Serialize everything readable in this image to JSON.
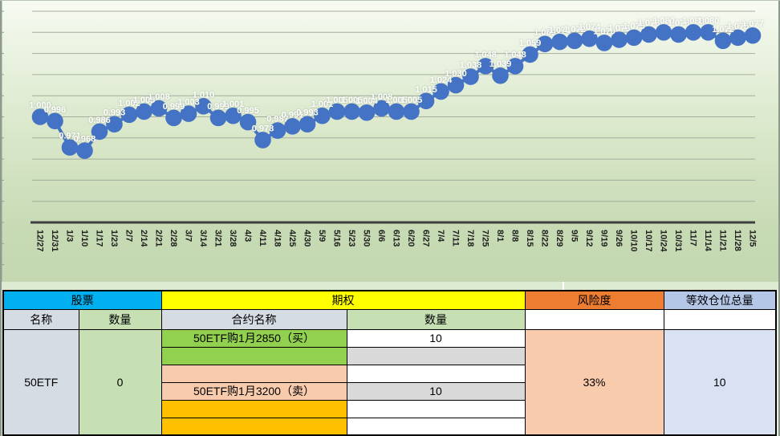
{
  "chart_data": {
    "type": "line",
    "title": "",
    "xlabel": "",
    "ylabel": "",
    "x": [
      "12/27",
      "12/31",
      "1/3",
      "1/10",
      "1/17",
      "1/23",
      "2/7",
      "2/14",
      "2/21",
      "2/28",
      "3/7",
      "3/14",
      "3/21",
      "3/28",
      "4/3",
      "4/11",
      "4/18",
      "4/25",
      "4/30",
      "5/9",
      "5/16",
      "5/23",
      "5/30",
      "6/6",
      "6/13",
      "6/20",
      "6/27",
      "7/4",
      "7/11",
      "7/18",
      "7/25",
      "8/1",
      "8/8",
      "8/15",
      "8/22",
      "8/29",
      "9/5",
      "9/12",
      "9/19",
      "9/26",
      "10/10",
      "10/17",
      "10/24",
      "10/31",
      "11/7",
      "11/14",
      "11/21",
      "11/28",
      "12/5"
    ],
    "values": [
      1.0,
      0.996,
      0.971,
      0.968,
      0.986,
      0.993,
      1.002,
      1.005,
      1.008,
      0.999,
      1.003,
      1.01,
      0.999,
      1.001,
      0.995,
      0.978,
      0.987,
      0.991,
      0.993,
      1.001,
      1.005,
      1.005,
      1.004,
      1.008,
      1.005,
      1.005,
      1.015,
      1.024,
      1.03,
      1.038,
      1.048,
      1.039,
      1.048,
      1.059,
      1.069,
      1.071,
      1.072,
      1.074,
      1.07,
      1.073,
      1.075,
      1.078,
      1.08,
      1.078,
      1.08,
      1.08,
      1.072,
      1.075,
      1.077
    ],
    "ylim": [
      0.9,
      1.1
    ],
    "grid_step": 0.02,
    "grid_on": true,
    "legend": "none",
    "line_color": "#4472C4",
    "label_color": "#ffffff",
    "label_format": "3-decimals",
    "x_label_rotation": 90
  },
  "table": {
    "header_row1": {
      "stock": "股票",
      "option": "期权",
      "risk": "风险度",
      "equivalent": "等效仓位总量"
    },
    "header_row2": {
      "name": "名称",
      "quantity": "数量",
      "contract_name": "合约名称",
      "quantity2": "数量"
    },
    "stock": {
      "name": "50ETF",
      "quantity": "0"
    },
    "contracts": [
      {
        "name": "50ETF购1月2850（买）",
        "qty": "10"
      },
      {
        "name": "",
        "qty": ""
      },
      {
        "name": "",
        "qty": ""
      },
      {
        "name": "50ETF购1月3200（卖）",
        "qty": "10"
      },
      {
        "name": "",
        "qty": ""
      },
      {
        "name": "",
        "qty": ""
      }
    ],
    "risk_value": "33%",
    "equivalent_value": "10"
  },
  "colors": {
    "stock_header": "#00B0F0",
    "option_header": "#FFFF00",
    "risk_header": "#ED7D31",
    "equivalent_header": "#B4C7E7",
    "label_cell": "#D6DCE4",
    "qty_header_cell": "#C6E0B4",
    "buy_row": "#92D050",
    "sell_row": "#F8CBAD",
    "pending_row": "#FFC000",
    "qty_alt_cell": "#D9D9D9",
    "risk_value_cell": "#F8CBAD",
    "equivalent_value_cell": "#D9E1F2",
    "chart_line": "#4472C4",
    "chart_bg_top": "#f8fbf4",
    "chart_bg_bottom": "#c3d8b1"
  }
}
